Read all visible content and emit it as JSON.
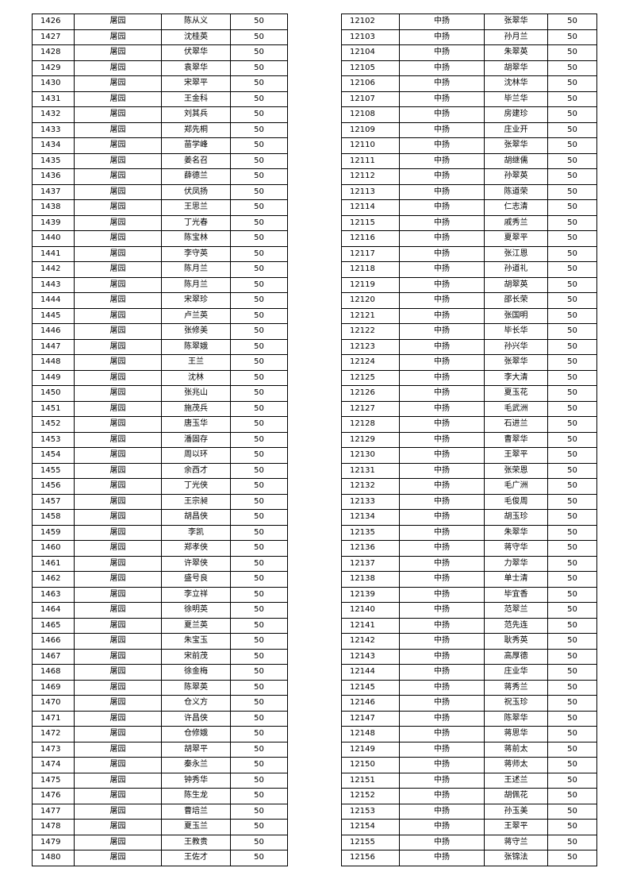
{
  "tables": [
    {
      "rows": [
        [
          "1426",
          "屠园",
          "陈从义",
          "50"
        ],
        [
          "1427",
          "屠园",
          "沈桂英",
          "50"
        ],
        [
          "1428",
          "屠园",
          "伏翠华",
          "50"
        ],
        [
          "1429",
          "屠园",
          "袁翠华",
          "50"
        ],
        [
          "1430",
          "屠园",
          "宋翠平",
          "50"
        ],
        [
          "1431",
          "屠园",
          "王金科",
          "50"
        ],
        [
          "1432",
          "屠园",
          "刘其兵",
          "50"
        ],
        [
          "1433",
          "屠园",
          "郑先桐",
          "50"
        ],
        [
          "1434",
          "屠园",
          "苗学峰",
          "50"
        ],
        [
          "1435",
          "屠园",
          "姜名召",
          "50"
        ],
        [
          "1436",
          "屠园",
          "薛德兰",
          "50"
        ],
        [
          "1437",
          "屠园",
          "伏凤扬",
          "50"
        ],
        [
          "1438",
          "屠园",
          "王思兰",
          "50"
        ],
        [
          "1439",
          "屠园",
          "丁光春",
          "50"
        ],
        [
          "1440",
          "屠园",
          "陈宝林",
          "50"
        ],
        [
          "1441",
          "屠园",
          "李守英",
          "50"
        ],
        [
          "1442",
          "屠园",
          "陈月兰",
          "50"
        ],
        [
          "1443",
          "屠园",
          "陈月兰",
          "50"
        ],
        [
          "1444",
          "屠园",
          "宋翠珍",
          "50"
        ],
        [
          "1445",
          "屠园",
          "卢兰英",
          "50"
        ],
        [
          "1446",
          "屠园",
          "张修美",
          "50"
        ],
        [
          "1447",
          "屠园",
          "陈翠娥",
          "50"
        ],
        [
          "1448",
          "屠园",
          "王兰",
          "50"
        ],
        [
          "1449",
          "屠园",
          "沈林",
          "50"
        ],
        [
          "1450",
          "屠园",
          "张兆山",
          "50"
        ],
        [
          "1451",
          "屠园",
          "施茂兵",
          "50"
        ],
        [
          "1452",
          "屠园",
          "唐玉华",
          "50"
        ],
        [
          "1453",
          "屠园",
          "潘固存",
          "50"
        ],
        [
          "1454",
          "屠园",
          "周以环",
          "50"
        ],
        [
          "1455",
          "屠园",
          "余西才",
          "50"
        ],
        [
          "1456",
          "屠园",
          "丁光侠",
          "50"
        ],
        [
          "1457",
          "屠园",
          "王宗昶",
          "50"
        ],
        [
          "1458",
          "屠园",
          "胡昌侠",
          "50"
        ],
        [
          "1459",
          "屠园",
          "李凯",
          "50"
        ],
        [
          "1460",
          "屠园",
          "郑孝侠",
          "50"
        ],
        [
          "1461",
          "屠园",
          "许翠侠",
          "50"
        ],
        [
          "1462",
          "屠园",
          "盛号良",
          "50"
        ],
        [
          "1463",
          "屠园",
          "李立祥",
          "50"
        ],
        [
          "1464",
          "屠园",
          "徐明英",
          "50"
        ],
        [
          "1465",
          "屠园",
          "夏兰英",
          "50"
        ],
        [
          "1466",
          "屠园",
          "朱宝玉",
          "50"
        ],
        [
          "1467",
          "屠园",
          "宋前茂",
          "50"
        ],
        [
          "1468",
          "屠园",
          "徐金梅",
          "50"
        ],
        [
          "1469",
          "屠园",
          "陈翠英",
          "50"
        ],
        [
          "1470",
          "屠园",
          "仓义方",
          "50"
        ],
        [
          "1471",
          "屠园",
          "许昌侠",
          "50"
        ],
        [
          "1472",
          "屠园",
          "仓修娥",
          "50"
        ],
        [
          "1473",
          "屠园",
          "胡翠平",
          "50"
        ],
        [
          "1474",
          "屠园",
          "秦永兰",
          "50"
        ],
        [
          "1475",
          "屠园",
          "钟秀华",
          "50"
        ],
        [
          "1476",
          "屠园",
          "陈生龙",
          "50"
        ],
        [
          "1477",
          "屠园",
          "曹培兰",
          "50"
        ],
        [
          "1478",
          "屠园",
          "夏玉兰",
          "50"
        ],
        [
          "1479",
          "屠园",
          "王教贵",
          "50"
        ],
        [
          "1480",
          "屠园",
          "王佐才",
          "50"
        ]
      ]
    },
    {
      "rows": [
        [
          "12102",
          "中扬",
          "张翠华",
          "50"
        ],
        [
          "12103",
          "中扬",
          "孙月兰",
          "50"
        ],
        [
          "12104",
          "中扬",
          "朱翠英",
          "50"
        ],
        [
          "12105",
          "中扬",
          "胡翠华",
          "50"
        ],
        [
          "12106",
          "中扬",
          "沈林华",
          "50"
        ],
        [
          "12107",
          "中扬",
          "毕兰华",
          "50"
        ],
        [
          "12108",
          "中扬",
          "房建珍",
          "50"
        ],
        [
          "12109",
          "中扬",
          "庄业开",
          "50"
        ],
        [
          "12110",
          "中扬",
          "张翠华",
          "50"
        ],
        [
          "12111",
          "中扬",
          "胡继儒",
          "50"
        ],
        [
          "12112",
          "中扬",
          "孙翠英",
          "50"
        ],
        [
          "12113",
          "中扬",
          "陈道荣",
          "50"
        ],
        [
          "12114",
          "中扬",
          "仁志清",
          "50"
        ],
        [
          "12115",
          "中扬",
          "戚秀兰",
          "50"
        ],
        [
          "12116",
          "中扬",
          "夏翠平",
          "50"
        ],
        [
          "12117",
          "中扬",
          "张江恩",
          "50"
        ],
        [
          "12118",
          "中扬",
          "孙道礼",
          "50"
        ],
        [
          "12119",
          "中扬",
          "胡翠英",
          "50"
        ],
        [
          "12120",
          "中扬",
          "邵长荣",
          "50"
        ],
        [
          "12121",
          "中扬",
          "张国明",
          "50"
        ],
        [
          "12122",
          "中扬",
          "毕长华",
          "50"
        ],
        [
          "12123",
          "中扬",
          "孙兴华",
          "50"
        ],
        [
          "12124",
          "中扬",
          "张翠华",
          "50"
        ],
        [
          "12125",
          "中扬",
          "李大清",
          "50"
        ],
        [
          "12126",
          "中扬",
          "夏玉花",
          "50"
        ],
        [
          "12127",
          "中扬",
          "毛武洲",
          "50"
        ],
        [
          "12128",
          "中扬",
          "石进兰",
          "50"
        ],
        [
          "12129",
          "中扬",
          "曹翠华",
          "50"
        ],
        [
          "12130",
          "中扬",
          "王翠平",
          "50"
        ],
        [
          "12131",
          "中扬",
          "张荣恩",
          "50"
        ],
        [
          "12132",
          "中扬",
          "毛广洲",
          "50"
        ],
        [
          "12133",
          "中扬",
          "毛俊周",
          "50"
        ],
        [
          "12134",
          "中扬",
          "胡玉珍",
          "50"
        ],
        [
          "12135",
          "中扬",
          "朱翠华",
          "50"
        ],
        [
          "12136",
          "中扬",
          "蒋守华",
          "50"
        ],
        [
          "12137",
          "中扬",
          "力翠华",
          "50"
        ],
        [
          "12138",
          "中扬",
          "单士清",
          "50"
        ],
        [
          "12139",
          "中扬",
          "毕宜香",
          "50"
        ],
        [
          "12140",
          "中扬",
          "范翠兰",
          "50"
        ],
        [
          "12141",
          "中扬",
          "范先连",
          "50"
        ],
        [
          "12142",
          "中扬",
          "耿秀英",
          "50"
        ],
        [
          "12143",
          "中扬",
          "高厚德",
          "50"
        ],
        [
          "12144",
          "中扬",
          "庄业华",
          "50"
        ],
        [
          "12145",
          "中扬",
          "蒋秀兰",
          "50"
        ],
        [
          "12146",
          "中扬",
          "祝玉珍",
          "50"
        ],
        [
          "12147",
          "中扬",
          "陈翠华",
          "50"
        ],
        [
          "12148",
          "中扬",
          "蒋思华",
          "50"
        ],
        [
          "12149",
          "中扬",
          "蒋前太",
          "50"
        ],
        [
          "12150",
          "中扬",
          "蒋师太",
          "50"
        ],
        [
          "12151",
          "中扬",
          "王述兰",
          "50"
        ],
        [
          "12152",
          "中扬",
          "胡佩花",
          "50"
        ],
        [
          "12153",
          "中扬",
          "孙玉美",
          "50"
        ],
        [
          "12154",
          "中扬",
          "王翠平",
          "50"
        ],
        [
          "12155",
          "中扬",
          "蒋守兰",
          "50"
        ],
        [
          "12156",
          "中扬",
          "张锦法",
          "50"
        ]
      ]
    }
  ]
}
